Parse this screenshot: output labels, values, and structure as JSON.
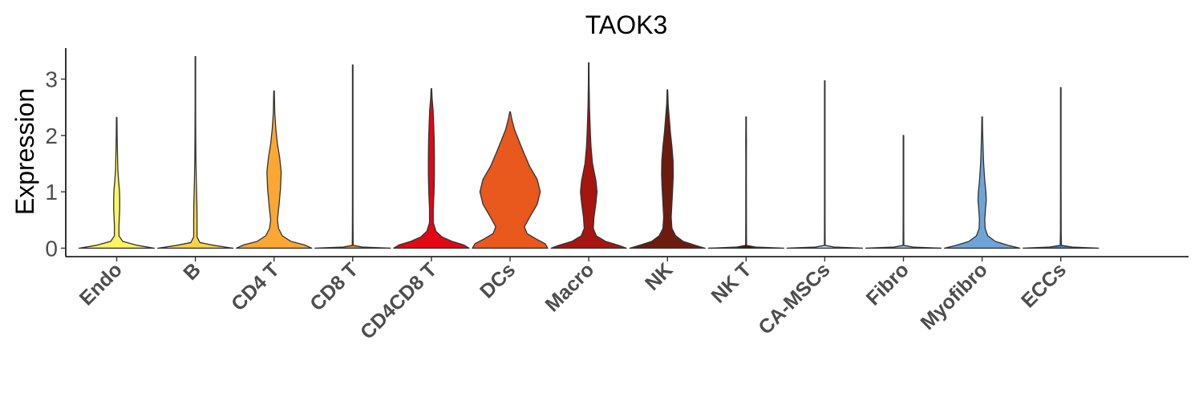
{
  "chart_data": {
    "type": "violin",
    "title": "TAOK3",
    "xlabel": "",
    "ylabel": "Expression",
    "ylim": [
      -0.15,
      3.55
    ],
    "yticks": [
      "0",
      "1",
      "2",
      "3"
    ],
    "legend": "none",
    "grid": false,
    "categories": [
      {
        "name": "Endo",
        "color": "#fff462",
        "max": 2.32,
        "profile": [
          [
            0,
            1.0
          ],
          [
            0.05,
            0.55
          ],
          [
            0.12,
            0.16
          ],
          [
            0.22,
            0.06
          ],
          [
            0.4,
            0.06
          ],
          [
            0.55,
            0.07
          ],
          [
            0.7,
            0.08
          ],
          [
            0.9,
            0.08
          ],
          [
            1.05,
            0.07
          ],
          [
            1.2,
            0.05
          ],
          [
            1.4,
            0.03
          ],
          [
            1.7,
            0.02
          ],
          [
            2.0,
            0.012
          ],
          [
            2.32,
            0.0
          ]
        ]
      },
      {
        "name": "B",
        "color": "#fdd247",
        "max": 3.4,
        "profile": [
          [
            0,
            1.0
          ],
          [
            0.05,
            0.5
          ],
          [
            0.1,
            0.12
          ],
          [
            0.2,
            0.045
          ],
          [
            0.5,
            0.045
          ],
          [
            0.8,
            0.04
          ],
          [
            1.2,
            0.025
          ],
          [
            1.6,
            0.014
          ],
          [
            2.0,
            0.01
          ],
          [
            2.5,
            0.006
          ],
          [
            3.0,
            0.004
          ],
          [
            3.4,
            0.0
          ]
        ]
      },
      {
        "name": "CD4 T",
        "color": "#faa733",
        "max": 2.79,
        "profile": [
          [
            0,
            1.0
          ],
          [
            0.06,
            0.8
          ],
          [
            0.12,
            0.45
          ],
          [
            0.22,
            0.22
          ],
          [
            0.35,
            0.12
          ],
          [
            0.5,
            0.09
          ],
          [
            0.75,
            0.13
          ],
          [
            1.05,
            0.17
          ],
          [
            1.35,
            0.19
          ],
          [
            1.6,
            0.15
          ],
          [
            1.85,
            0.09
          ],
          [
            2.1,
            0.05
          ],
          [
            2.4,
            0.02
          ],
          [
            2.79,
            0.0
          ]
        ]
      },
      {
        "name": "CD8 T",
        "color": "#f38b2a",
        "max": 3.25,
        "profile": [
          [
            0,
            1.0
          ],
          [
            0.02,
            0.25
          ],
          [
            0.05,
            0.012
          ],
          [
            0.5,
            0.008
          ],
          [
            1.0,
            0.007
          ],
          [
            1.5,
            0.006
          ],
          [
            2.0,
            0.005
          ],
          [
            2.5,
            0.005
          ],
          [
            3.0,
            0.004
          ],
          [
            3.25,
            0.0
          ]
        ]
      },
      {
        "name": "CD4CD8 T",
        "color": "#e30613",
        "max": 2.83,
        "profile": [
          [
            0,
            1.0
          ],
          [
            0.06,
            0.85
          ],
          [
            0.12,
            0.55
          ],
          [
            0.2,
            0.28
          ],
          [
            0.3,
            0.12
          ],
          [
            0.45,
            0.05
          ],
          [
            0.7,
            0.05
          ],
          [
            1.0,
            0.07
          ],
          [
            1.3,
            0.08
          ],
          [
            1.6,
            0.08
          ],
          [
            1.9,
            0.075
          ],
          [
            2.2,
            0.06
          ],
          [
            2.45,
            0.045
          ],
          [
            2.65,
            0.02
          ],
          [
            2.83,
            0.0
          ]
        ]
      },
      {
        "name": "DCs",
        "color": "#e9581c",
        "max": 2.42,
        "profile": [
          [
            0,
            1.0
          ],
          [
            0.08,
            0.93
          ],
          [
            0.16,
            0.7
          ],
          [
            0.26,
            0.45
          ],
          [
            0.38,
            0.38
          ],
          [
            0.55,
            0.52
          ],
          [
            0.78,
            0.72
          ],
          [
            1.0,
            0.8
          ],
          [
            1.22,
            0.72
          ],
          [
            1.45,
            0.52
          ],
          [
            1.7,
            0.36
          ],
          [
            1.9,
            0.24
          ],
          [
            2.1,
            0.12
          ],
          [
            2.28,
            0.05
          ],
          [
            2.42,
            0.0
          ]
        ]
      },
      {
        "name": "Macro",
        "color": "#a7150f",
        "max": 3.29,
        "profile": [
          [
            0,
            1.0
          ],
          [
            0.05,
            0.8
          ],
          [
            0.12,
            0.45
          ],
          [
            0.22,
            0.2
          ],
          [
            0.35,
            0.12
          ],
          [
            0.55,
            0.14
          ],
          [
            0.8,
            0.19
          ],
          [
            1.0,
            0.22
          ],
          [
            1.2,
            0.19
          ],
          [
            1.5,
            0.1
          ],
          [
            1.8,
            0.06
          ],
          [
            2.1,
            0.04
          ],
          [
            2.5,
            0.02
          ],
          [
            2.9,
            0.01
          ],
          [
            3.29,
            0.0
          ]
        ]
      },
      {
        "name": "NK",
        "color": "#6e1b0e",
        "max": 2.81,
        "profile": [
          [
            0,
            1.0
          ],
          [
            0.05,
            0.75
          ],
          [
            0.12,
            0.42
          ],
          [
            0.22,
            0.22
          ],
          [
            0.35,
            0.12
          ],
          [
            0.55,
            0.1
          ],
          [
            0.8,
            0.12
          ],
          [
            1.05,
            0.14
          ],
          [
            1.3,
            0.155
          ],
          [
            1.55,
            0.15
          ],
          [
            1.8,
            0.12
          ],
          [
            2.05,
            0.08
          ],
          [
            2.3,
            0.05
          ],
          [
            2.55,
            0.02
          ],
          [
            2.81,
            0.0
          ]
        ]
      },
      {
        "name": "NK T",
        "color": "#4a0f08",
        "max": 2.33,
        "profile": [
          [
            0,
            1.0
          ],
          [
            0.02,
            0.25
          ],
          [
            0.05,
            0.012
          ],
          [
            0.5,
            0.009
          ],
          [
            1.0,
            0.008
          ],
          [
            1.5,
            0.007
          ],
          [
            1.9,
            0.01
          ],
          [
            2.1,
            0.006
          ],
          [
            2.33,
            0.0
          ]
        ]
      },
      {
        "name": "CA-MSCs",
        "color": "#b9d9ef",
        "max": 2.97,
        "profile": [
          [
            0,
            1.0
          ],
          [
            0.02,
            0.25
          ],
          [
            0.05,
            0.01
          ],
          [
            0.5,
            0.008
          ],
          [
            1.0,
            0.007
          ],
          [
            1.5,
            0.006
          ],
          [
            2.0,
            0.006
          ],
          [
            2.5,
            0.005
          ],
          [
            2.97,
            0.0
          ]
        ]
      },
      {
        "name": "Fibro",
        "color": "#9dc4e4",
        "max": 2.0,
        "profile": [
          [
            0,
            1.0
          ],
          [
            0.02,
            0.25
          ],
          [
            0.05,
            0.01
          ],
          [
            0.5,
            0.008
          ],
          [
            1.0,
            0.007
          ],
          [
            1.5,
            0.006
          ],
          [
            2.0,
            0.0
          ]
        ]
      },
      {
        "name": "Myofibro",
        "color": "#6fa4d9",
        "max": 2.33,
        "profile": [
          [
            0,
            1.0
          ],
          [
            0.05,
            0.7
          ],
          [
            0.12,
            0.35
          ],
          [
            0.22,
            0.15
          ],
          [
            0.35,
            0.08
          ],
          [
            0.5,
            0.07
          ],
          [
            0.7,
            0.09
          ],
          [
            0.85,
            0.11
          ],
          [
            1.0,
            0.1
          ],
          [
            1.2,
            0.07
          ],
          [
            1.5,
            0.04
          ],
          [
            1.8,
            0.025
          ],
          [
            2.1,
            0.012
          ],
          [
            2.33,
            0.0
          ]
        ]
      },
      {
        "name": "ECCs",
        "color": "#3f86c8",
        "max": 2.85,
        "profile": [
          [
            0,
            1.0
          ],
          [
            0.02,
            0.3
          ],
          [
            0.05,
            0.015
          ],
          [
            0.3,
            0.01
          ],
          [
            0.6,
            0.009
          ],
          [
            1.0,
            0.008
          ],
          [
            1.5,
            0.007
          ],
          [
            2.0,
            0.006
          ],
          [
            2.5,
            0.005
          ],
          [
            2.85,
            0.0
          ]
        ]
      }
    ]
  }
}
